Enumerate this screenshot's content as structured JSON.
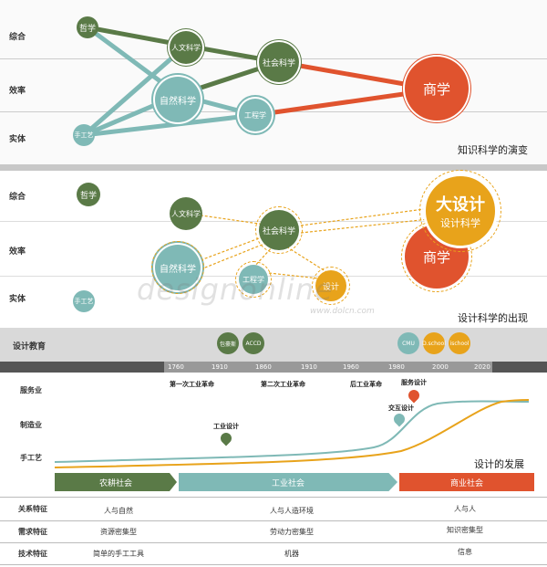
{
  "section1": {
    "rows": [
      "综合",
      "效率",
      "实体"
    ],
    "caption": "知识科学的演变",
    "nodes": {
      "zhexue": "哲学",
      "renwen": "人文科学",
      "shehui": "社会科学",
      "ziran": "自然科学",
      "gongcheng": "工程学",
      "shougong": "手工艺",
      "shangxue": "商学"
    }
  },
  "section2": {
    "rows": [
      "综合",
      "效率",
      "实体"
    ],
    "caption": "设计科学的出现",
    "nodes": {
      "zhexue": "哲学",
      "renwen": "人文科学",
      "shehui": "社会科学",
      "ziran": "自然科学",
      "gongcheng": "工程学",
      "shougong": "手工艺",
      "sheji": "设计",
      "shangxue": "商学",
      "dasheji_title": "大设计",
      "dasheji_sub": "设计科学"
    },
    "watermark": "designonline",
    "watermark_url": "www.dolcn.com"
  },
  "section3": {
    "edu_label": "设计教育",
    "bubbles": [
      "包豪斯",
      "ACCD",
      "CMU",
      "D.school",
      "ischool"
    ],
    "years": [
      "1760",
      "1910",
      "1860",
      "1910",
      "1960",
      "1980",
      "2000",
      "2020"
    ],
    "rows": [
      "服务业",
      "制造业",
      "手工艺"
    ],
    "events": {
      "rev1": "第一次工业革命",
      "rev2": "第二次工业革命",
      "postind": "后工业革命",
      "industrial_design": "工业设计",
      "service_design": "服务设计",
      "interaction_design": "交互设计"
    },
    "caption": "设计的发展",
    "eras": [
      "农耕社会",
      "工业社会",
      "商业社会"
    ]
  },
  "table": {
    "rows": [
      {
        "label": "关系特征",
        "cells": [
          "人与自然",
          "人与人造环境",
          "人与人"
        ]
      },
      {
        "label": "需求特征",
        "cells": [
          "资源密集型",
          "劳动力密集型",
          "知识密集型"
        ]
      },
      {
        "label": "技术特征",
        "cells": [
          "简单的手工工具",
          "机器",
          "信息"
        ]
      }
    ]
  },
  "colors": {
    "green": "#5a7a47",
    "teal": "#7fb9b6",
    "red": "#e0532e",
    "orange": "#e8a31b",
    "band_gray": "#d9d9d9",
    "dark_bar": "#555555"
  }
}
